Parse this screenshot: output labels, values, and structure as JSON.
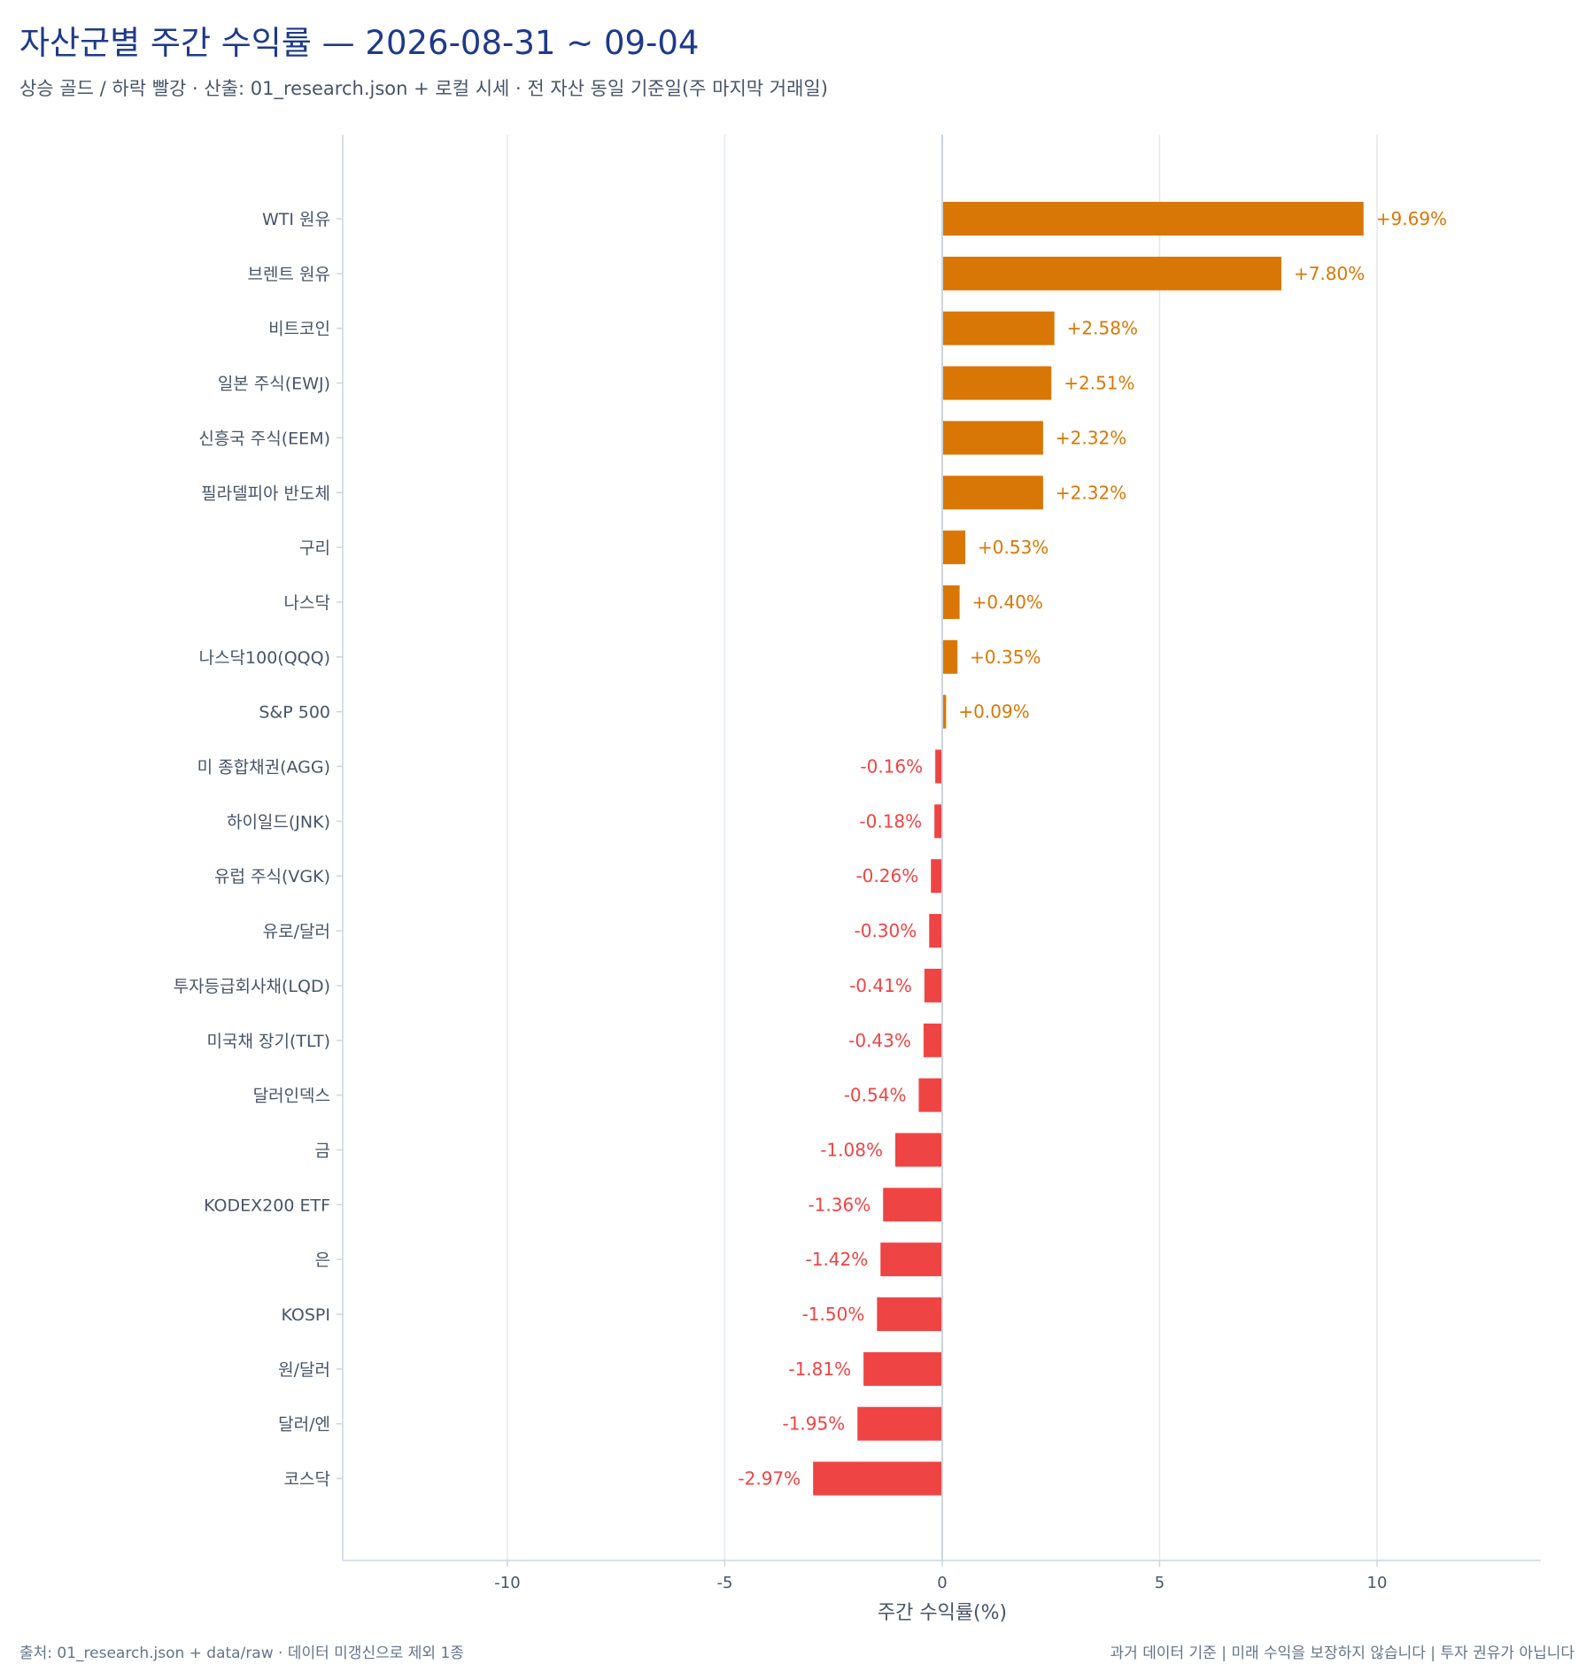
{
  "header": {
    "title": "자산군별 주간 수익률 — 2026-08-31 ~ 09-04",
    "subtitle": "상승 골드 / 하락 빨강 · 산출: 01_research.json + 로컬 시세 · 전 자산 동일 기준일(주 마지막 거래일)"
  },
  "footer": {
    "source": "출처: 01_research.json + data/raw · 데이터 미갱신으로 제외 1종",
    "disclaimer": "과거 데이터 기준 | 미래 수익을 보장하지 않습니다 | 투자 권유가 아닙니다"
  },
  "colors": {
    "up": "#d97706",
    "down": "#ef4444",
    "grid": "#e2e8f0",
    "axis": "#cbd5e1",
    "text": "#475569"
  },
  "chart_data": {
    "type": "bar",
    "orientation": "horizontal",
    "xlabel": "주간 수익률(%)",
    "ylabel": "",
    "xlim": [
      -13.75,
      13.75
    ],
    "xticks": [
      -10,
      -5,
      0,
      5,
      10
    ],
    "xtick_labels": [
      "-10",
      "-5",
      "0",
      "5",
      "10"
    ],
    "grid": "vertical",
    "categories": [
      "WTI 원유",
      "브렌트 원유",
      "비트코인",
      "일본 주식(EWJ)",
      "신흥국 주식(EEM)",
      "필라델피아 반도체",
      "구리",
      "나스닥",
      "나스닥100(QQQ)",
      "S&P 500",
      "미 종합채권(AGG)",
      "하이일드(JNK)",
      "유럽 주식(VGK)",
      "유로/달러",
      "투자등급회사채(LQD)",
      "미국채 장기(TLT)",
      "달러인덱스",
      "금",
      "KODEX200 ETF",
      "은",
      "KOSPI",
      "원/달러",
      "달러/엔",
      "코스닥"
    ],
    "values": [
      9.69,
      7.8,
      2.58,
      2.51,
      2.32,
      2.32,
      0.53,
      0.4,
      0.35,
      0.09,
      -0.16,
      -0.18,
      -0.26,
      -0.3,
      -0.41,
      -0.43,
      -0.54,
      -1.08,
      -1.36,
      -1.42,
      -1.5,
      -1.81,
      -1.95,
      -2.97
    ],
    "value_labels": [
      "+9.69%",
      "+7.80%",
      "+2.58%",
      "+2.51%",
      "+2.32%",
      "+2.32%",
      "+0.53%",
      "+0.40%",
      "+0.35%",
      "+0.09%",
      "-0.16%",
      "-0.18%",
      "-0.26%",
      "-0.30%",
      "-0.41%",
      "-0.43%",
      "-0.54%",
      "-1.08%",
      "-1.36%",
      "-1.42%",
      "-1.50%",
      "-1.81%",
      "-1.95%",
      "-2.97%"
    ]
  }
}
